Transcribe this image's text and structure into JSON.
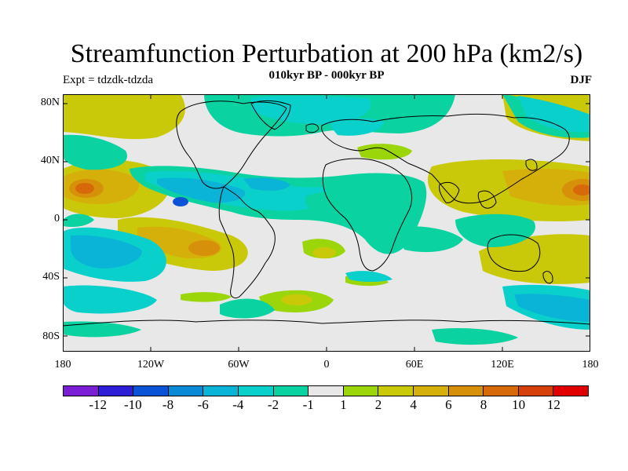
{
  "title": "Streamfunction Perturbation at 200 hPa (km2/s)",
  "subtitle": "010kyr BP - 000kyr BP",
  "left_label": "Expt = tdzdk-tdzda",
  "right_label": "DJF",
  "lat_ticks": [
    "80N",
    "40N",
    "0",
    "40S",
    "80S"
  ],
  "lon_ticks": [
    "180",
    "120W",
    "60W",
    "0",
    "60E",
    "120E",
    "180"
  ],
  "colorbar": {
    "labels": [
      "-12",
      "-10",
      "-8",
      "-6",
      "-4",
      "-2",
      "-1",
      "1",
      "2",
      "4",
      "6",
      "8",
      "10",
      "12"
    ],
    "colors": [
      "#7a1fd6",
      "#2e1fd6",
      "#0a52d6",
      "#0a8ad6",
      "#0ab4d6",
      "#0ad0cc",
      "#0ad2a0",
      "#e8e8e8",
      "#9bd60a",
      "#c9c90a",
      "#d6b00a",
      "#d6900a",
      "#d66a0a",
      "#d6400a",
      "#e00000"
    ]
  },
  "colors": {
    "neutral": "#e8e8e8",
    "land_outline": "#000000"
  }
}
